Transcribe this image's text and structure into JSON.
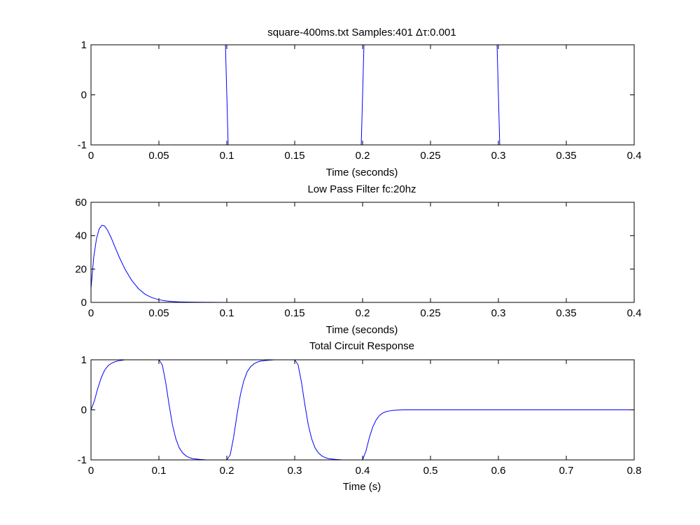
{
  "chart_data": [
    {
      "type": "line",
      "title": "square-400ms.txt Samples:401 Δτ:0.001",
      "xlabel": "Time (seconds)",
      "ylabel": "",
      "xlim": [
        0,
        0.4
      ],
      "ylim": [
        -1,
        1
      ],
      "xticks": [
        0,
        0.05,
        0.1,
        0.15,
        0.2,
        0.25,
        0.3,
        0.35,
        0.4
      ],
      "xtick_labels": [
        "0",
        "0.05",
        "0.1",
        "0.15",
        "0.2",
        "0.25",
        "0.3",
        "0.35",
        "0.4"
      ],
      "yticks": [
        -1,
        0,
        1
      ],
      "ytick_labels": [
        "-1",
        "0",
        "1"
      ],
      "grid": false,
      "series": [
        {
          "color": "#0000ff",
          "x": [
            0,
            0.099,
            0.1,
            0.101,
            0.199,
            0.2,
            0.201,
            0.299,
            0.3,
            0.301,
            0.4
          ],
          "y": [
            1,
            1,
            0,
            -1,
            -1,
            0,
            1,
            1,
            0,
            -1,
            -1
          ]
        }
      ]
    },
    {
      "type": "line",
      "title": "Low Pass Filter fc:20hz",
      "xlabel": "Time (seconds)",
      "ylabel": "",
      "xlim": [
        0,
        0.4
      ],
      "ylim": [
        0,
        60
      ],
      "xticks": [
        0,
        0.05,
        0.1,
        0.15,
        0.2,
        0.25,
        0.3,
        0.35,
        0.4
      ],
      "xtick_labels": [
        "0",
        "0.05",
        "0.1",
        "0.15",
        "0.2",
        "0.25",
        "0.3",
        "0.35",
        "0.4"
      ],
      "yticks": [
        0,
        20,
        40,
        60
      ],
      "ytick_labels": [
        "0",
        "20",
        "40",
        "60"
      ],
      "grid": false,
      "series": [
        {
          "color": "#0000ff",
          "x": [
            0,
            0.002,
            0.004,
            0.006,
            0.008,
            0.01,
            0.012,
            0.015,
            0.018,
            0.021,
            0.025,
            0.03,
            0.035,
            0.04,
            0.045,
            0.05,
            0.055,
            0.06,
            0.065,
            0.07,
            0.08,
            0.1,
            0.15,
            0.2,
            0.25,
            0.3,
            0.325
          ],
          "y": [
            8.5,
            27,
            38,
            44,
            46.2,
            45.8,
            43.5,
            38.5,
            32.5,
            26.8,
            20,
            13.2,
            8.2,
            4.8,
            2.8,
            1.6,
            0.9,
            0.5,
            0.3,
            0.2,
            0.08,
            0.02,
            0,
            0,
            0,
            0,
            0
          ]
        }
      ]
    },
    {
      "type": "line",
      "title": "Total Circuit Response",
      "xlabel": "Time (s)",
      "ylabel": "",
      "xlim": [
        0,
        0.8
      ],
      "ylim": [
        -1,
        1
      ],
      "xticks": [
        0,
        0.1,
        0.2,
        0.3,
        0.4,
        0.5,
        0.6,
        0.7,
        0.8
      ],
      "xtick_labels": [
        "0",
        "0.1",
        "0.2",
        "0.3",
        "0.4",
        "0.5",
        "0.6",
        "0.7",
        "0.8"
      ],
      "yticks": [
        -1,
        0,
        1
      ],
      "ytick_labels": [
        "-1",
        "0",
        "1"
      ],
      "grid": false,
      "series": [
        {
          "color": "#0000ff",
          "x": [
            0,
            0.005,
            0.01,
            0.015,
            0.02,
            0.025,
            0.03,
            0.035,
            0.04,
            0.045,
            0.05,
            0.055,
            0.1,
            0.105,
            0.11,
            0.115,
            0.12,
            0.125,
            0.13,
            0.135,
            0.14,
            0.145,
            0.15,
            0.16,
            0.17,
            0.18,
            0.2,
            0.205,
            0.21,
            0.215,
            0.22,
            0.225,
            0.23,
            0.235,
            0.24,
            0.245,
            0.25,
            0.26,
            0.27,
            0.3,
            0.305,
            0.31,
            0.315,
            0.32,
            0.325,
            0.33,
            0.335,
            0.34,
            0.345,
            0.35,
            0.36,
            0.37,
            0.38,
            0.4,
            0.405,
            0.41,
            0.415,
            0.42,
            0.425,
            0.43,
            0.435,
            0.44,
            0.445,
            0.45,
            0.46,
            0.48,
            0.5,
            0.6,
            0.7,
            0.8
          ],
          "y": [
            0,
            0.18,
            0.43,
            0.64,
            0.79,
            0.88,
            0.93,
            0.96,
            0.98,
            0.99,
            1,
            1,
            1,
            0.9,
            0.55,
            0.1,
            -0.3,
            -0.58,
            -0.76,
            -0.86,
            -0.92,
            -0.955,
            -0.975,
            -0.99,
            -1,
            -1,
            -1,
            -0.9,
            -0.55,
            -0.1,
            0.3,
            0.58,
            0.76,
            0.86,
            0.92,
            0.955,
            0.975,
            0.99,
            1,
            1,
            0.9,
            0.55,
            0.1,
            -0.3,
            -0.58,
            -0.76,
            -0.86,
            -0.92,
            -0.955,
            -0.975,
            -0.99,
            -1,
            -1,
            -1,
            -0.82,
            -0.55,
            -0.34,
            -0.2,
            -0.11,
            -0.06,
            -0.035,
            -0.02,
            -0.01,
            -0.005,
            0,
            0,
            0,
            0,
            0,
            0
          ]
        }
      ]
    }
  ]
}
